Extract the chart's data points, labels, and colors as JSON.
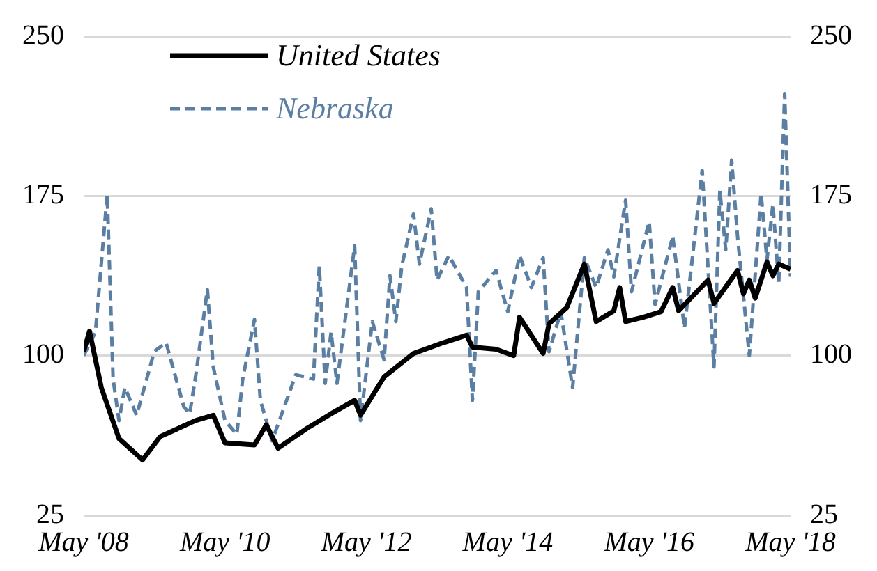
{
  "chart_data": {
    "type": "line",
    "xlim": [
      "2008-05",
      "2018-05"
    ],
    "xticks": [
      {
        "value": "2008-05",
        "label": "May '08"
      },
      {
        "value": "2010-05",
        "label": "May '10"
      },
      {
        "value": "2012-05",
        "label": "May '12"
      },
      {
        "value": "2014-05",
        "label": "May '14"
      },
      {
        "value": "2016-05",
        "label": "May '16"
      },
      {
        "value": "2018-05",
        "label": "May '18"
      }
    ],
    "ylim": [
      25,
      250
    ],
    "yticks": [
      25,
      100,
      175,
      250
    ],
    "y2lim": [
      25,
      250
    ],
    "y2ticks": [
      25,
      100,
      175,
      250
    ],
    "grid": "y",
    "legend": "top left",
    "marker": "none",
    "series": [
      {
        "name": "United States",
        "color": "#000000",
        "line_style": "solid",
        "x": [
          "2008-05",
          "2008-06",
          "2008-08",
          "2008-11",
          "2009-03",
          "2009-06",
          "2009-12",
          "2010-03",
          "2010-05",
          "2010-10",
          "2010-12",
          "2011-02",
          "2011-07",
          "2011-11",
          "2012-03",
          "2012-04",
          "2012-08",
          "2013-01",
          "2013-06",
          "2013-10",
          "2013-11",
          "2014-03",
          "2014-06",
          "2014-07",
          "2014-11",
          "2014-12",
          "2015-03",
          "2015-06",
          "2015-08",
          "2015-11",
          "2015-12",
          "2016-01",
          "2016-04",
          "2016-07",
          "2016-09",
          "2016-10",
          "2017-03",
          "2017-04",
          "2017-08",
          "2017-09",
          "2017-10",
          "2017-11",
          "2018-01",
          "2018-02",
          "2018-03",
          "2018-05"
        ],
        "values": [
          101.8,
          111.5,
          85,
          61,
          51,
          62,
          69.5,
          72,
          59,
          58,
          67.5,
          56.5,
          66,
          72.7,
          79,
          72,
          90,
          101,
          106,
          109.6,
          104,
          103,
          100,
          118,
          101,
          115,
          122.5,
          143,
          116,
          121,
          132,
          116,
          118,
          120.6,
          132,
          121,
          135.5,
          124.5,
          140,
          129,
          135.5,
          127,
          144,
          137.5,
          143,
          140.6
        ]
      },
      {
        "name": "Nebraska",
        "color": "#5b7fa3",
        "line_style": "dashed",
        "x": [
          "2008-05",
          "2008-07",
          "2008-09",
          "2008-10",
          "2008-11",
          "2008-12",
          "2009-02",
          "2009-05",
          "2009-07",
          "2009-10",
          "2009-11",
          "2009-12",
          "2010-02",
          "2010-03",
          "2010-05",
          "2010-07",
          "2010-08",
          "2010-10",
          "2010-11",
          "2011-01",
          "2011-05",
          "2011-08",
          "2011-09",
          "2011-10",
          "2011-11",
          "2011-12",
          "2012-03",
          "2012-04",
          "2012-06",
          "2012-08",
          "2012-09",
          "2012-10",
          "2012-11",
          "2013-01",
          "2013-02",
          "2013-04",
          "2013-05",
          "2013-07",
          "2013-10",
          "2013-11",
          "2013-12",
          "2014-03",
          "2014-05",
          "2014-07",
          "2014-09",
          "2014-11",
          "2014-12",
          "2015-02",
          "2015-04",
          "2015-06",
          "2015-08",
          "2015-10",
          "2015-11",
          "2016-01",
          "2016-02",
          "2016-05",
          "2016-06",
          "2016-09",
          "2016-11",
          "2017-02",
          "2017-04",
          "2017-05",
          "2017-06",
          "2017-07",
          "2017-08",
          "2017-10",
          "2017-12",
          "2018-01",
          "2018-02",
          "2018-03",
          "2018-04",
          "2018-05"
        ],
        "values": [
          100,
          111,
          175.6,
          89,
          69.5,
          85,
          72,
          102,
          106,
          76,
          72.7,
          90,
          131,
          94.7,
          69.5,
          63,
          89,
          117,
          79,
          60,
          91,
          89,
          142,
          87,
          111,
          87,
          151.6,
          69.5,
          116,
          98,
          137.5,
          116,
          142,
          166.5,
          143,
          169,
          135.5,
          147,
          132,
          79,
          130,
          140,
          120.6,
          147,
          132,
          146,
          101.8,
          120.6,
          85,
          146,
          132,
          149.7,
          137,
          173,
          130,
          163,
          124,
          156,
          113,
          187,
          94.7,
          177.5,
          149.7,
          191.8,
          156,
          100,
          176,
          145,
          171,
          134,
          223,
          137
        ]
      }
    ]
  }
}
